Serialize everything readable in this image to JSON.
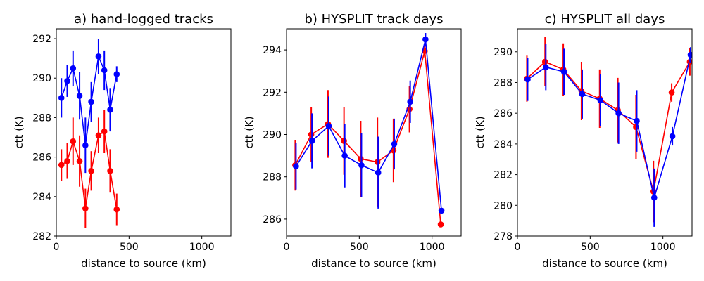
{
  "chart_data": [
    {
      "type": "line",
      "title": "a) hand-logged tracks",
      "xlabel": "distance to source (km)",
      "ylabel": "ctt (K)",
      "xlim": [
        0,
        1200
      ],
      "ylim": [
        282,
        292.5
      ],
      "xticks": [
        0,
        500,
        1000
      ],
      "yticks": [
        282,
        284,
        286,
        288,
        290,
        292
      ],
      "series": [
        {
          "name": "blue",
          "color": "#0000ff",
          "x": [
            35,
            75,
            115,
            160,
            200,
            240,
            290,
            330,
            370,
            415
          ],
          "y": [
            289.0,
            289.85,
            290.5,
            289.1,
            286.6,
            288.8,
            291.1,
            290.4,
            288.4,
            290.2
          ],
          "err": [
            1.0,
            0.8,
            0.9,
            1.2,
            1.4,
            1.0,
            0.9,
            1.0,
            1.1,
            0.4
          ]
        },
        {
          "name": "red",
          "color": "#ff0000",
          "x": [
            35,
            75,
            115,
            160,
            200,
            240,
            290,
            330,
            370,
            415
          ],
          "y": [
            285.6,
            285.8,
            286.8,
            285.8,
            283.4,
            285.3,
            287.1,
            287.3,
            285.3,
            283.35
          ],
          "err": [
            0.8,
            0.9,
            1.2,
            1.3,
            1.0,
            1.0,
            0.9,
            1.1,
            1.1,
            0.8
          ]
        }
      ]
    },
    {
      "type": "line",
      "title": "b) HYSPLIT track days",
      "xlabel": "distance to source (km)",
      "ylabel": "ctt (K)",
      "xlim": [
        0,
        1200
      ],
      "ylim": [
        285.2,
        295.0
      ],
      "xticks": [
        0,
        500,
        1000
      ],
      "yticks": [
        286,
        288,
        290,
        292,
        294
      ],
      "series": [
        {
          "name": "red",
          "color": "#ff0000",
          "x": [
            60,
            170,
            285,
            395,
            510,
            625,
            735,
            845,
            950,
            1060
          ],
          "y": [
            288.55,
            290.0,
            290.5,
            289.7,
            288.85,
            288.7,
            289.25,
            291.2,
            293.95,
            285.75
          ],
          "err": [
            1.2,
            1.3,
            1.6,
            1.6,
            1.8,
            2.1,
            1.5,
            1.1,
            0.3,
            0.0
          ]
        },
        {
          "name": "blue",
          "color": "#0000ff",
          "x": [
            65,
            175,
            290,
            400,
            515,
            630,
            740,
            850,
            955,
            1065
          ],
          "y": [
            288.5,
            289.7,
            290.4,
            289.0,
            288.55,
            288.2,
            289.55,
            291.55,
            294.5,
            286.4
          ],
          "err": [
            1.1,
            1.3,
            1.4,
            1.5,
            1.5,
            1.7,
            1.2,
            1.0,
            0.3,
            0.0
          ]
        }
      ]
    },
    {
      "type": "line",
      "title": "c) HYSPLIT all days",
      "xlabel": "distance to source (km)",
      "ylabel": "ctt (K)",
      "xlim": [
        0,
        1200
      ],
      "ylim": [
        278,
        291.5
      ],
      "xticks": [
        0,
        500,
        1000
      ],
      "yticks": [
        278,
        280,
        282,
        284,
        286,
        288,
        290
      ],
      "series": [
        {
          "name": "red",
          "color": "#ff0000",
          "x": [
            65,
            190,
            315,
            440,
            565,
            690,
            815,
            935,
            1060,
            1185
          ],
          "y": [
            288.25,
            289.35,
            288.85,
            287.45,
            286.95,
            286.2,
            285.1,
            280.9,
            287.35,
            289.35
          ],
          "err": [
            1.5,
            1.6,
            1.7,
            1.9,
            1.9,
            2.1,
            2.1,
            2.0,
            0.6,
            0.9
          ]
        },
        {
          "name": "blue",
          "color": "#0000ff",
          "x": [
            70,
            195,
            320,
            445,
            570,
            695,
            820,
            940,
            1065,
            1190
          ],
          "y": [
            288.2,
            289.0,
            288.7,
            287.25,
            286.85,
            286.0,
            285.5,
            280.5,
            284.5,
            289.8
          ],
          "err": [
            1.4,
            1.5,
            1.5,
            1.6,
            1.7,
            2.0,
            2.0,
            1.9,
            0.6,
            0.5
          ]
        }
      ]
    }
  ]
}
